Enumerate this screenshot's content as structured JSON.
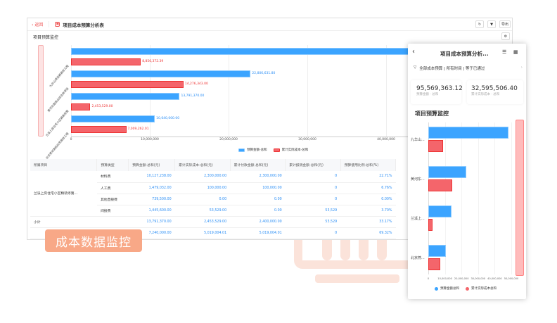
{
  "header": {
    "back_label": "返回",
    "title": "项目成本预算分析表",
    "refresh_icon": "refresh-icon",
    "filter_icon": "filter-icon",
    "export_label": "导出"
  },
  "section_title": "项目预算监控",
  "chart_data": {
    "type": "bar",
    "orientation": "horizontal",
    "categories": [
      "九华山项目精装修工程",
      "黄河东路商业综合体项目",
      "兰溪上房住宅小区精装修第",
      "北京燕郊高档住宅装修工程"
    ],
    "series": [
      {
        "name": "预算金额-总和",
        "color": "#3ba4ff",
        "values": [
          48331361.32,
          22806631.8,
          13791370.0,
          10640000.0
        ],
        "labels": [
          "",
          "22,806,631.80",
          "13,791,370.00",
          "10,640,000.00"
        ]
      },
      {
        "name": "累计实际成本-总和",
        "color": "#f4656b",
        "values": [
          8856372.39,
          14276343.0,
          2453529.0,
          7009262.01
        ],
        "labels": [
          "8,856,372.39",
          "14,276,343.00",
          "2,453,529.00",
          "7,009,262.01"
        ]
      }
    ],
    "xlim": [
      0,
      50000000
    ],
    "xticks": [
      "0",
      "10,000,000",
      "20,000,000",
      "30,000,000",
      "40,000,000"
    ],
    "grid": true,
    "legend": "bottom-right"
  },
  "table": {
    "headers": [
      "所属项目",
      "预算类型",
      "预算金额-总和(元)",
      "累计实际成本-总和(元)",
      "累计付款金额-总和(元)",
      "累计报销金额-总和(元)",
      "预算使用比例-总和(%)"
    ],
    "group_name": "兰溪上房住宅小区精装修第...",
    "rows": [
      [
        "材料费",
        "10,127,238.00",
        "2,300,000.00",
        "2,300,000.00",
        "0",
        "22.71%"
      ],
      [
        "人工费",
        "1,479,032.00",
        "100,000.00",
        "100,000.00",
        "0",
        "6.76%"
      ],
      [
        "其他直接费",
        "739,500.00",
        "0.00",
        "0.00",
        "0",
        "0.00%"
      ],
      [
        "间接费",
        "1,445,600.00",
        "53,529.00",
        "0.00",
        "53,529",
        "3.70%"
      ]
    ],
    "subtotal": {
      "label": "小计",
      "values": [
        "13,791,370.00",
        "2,453,529.00",
        "2,400,000.00",
        "53,529",
        "33.17%"
      ]
    },
    "rows2": [
      [
        "材料费",
        "7,240,000.00",
        "5,019,004.01",
        "5,019,004.01",
        "0",
        "69.32%"
      ],
      [
        "",
        "3,000,000.00",
        "1,695,320.00",
        "1,695,320.00",
        "0",
        "56.51%"
      ]
    ]
  },
  "badge": "成本数据监控",
  "mobile": {
    "title": "项目成本预算分析...",
    "filter_text": "全部成本预算 | 所有时间 | 等于已通过",
    "kpis": [
      {
        "value": "95,569,363.12",
        "label": "预算金额 · 总和"
      },
      {
        "value": "32,595,506.40",
        "label": "累计实际成本 · 总和"
      }
    ],
    "chart_title": "项目预算监控",
    "categories": [
      "九华山...",
      "黄河东...",
      "兰溪上...",
      "北京燕..."
    ],
    "xticks": [
      "0",
      "10,000,000",
      "20,000,000",
      "30,000,000",
      "40,000,000",
      "50,000,000"
    ],
    "legend": [
      "预算金额总和",
      "累计实际成本总和"
    ]
  }
}
